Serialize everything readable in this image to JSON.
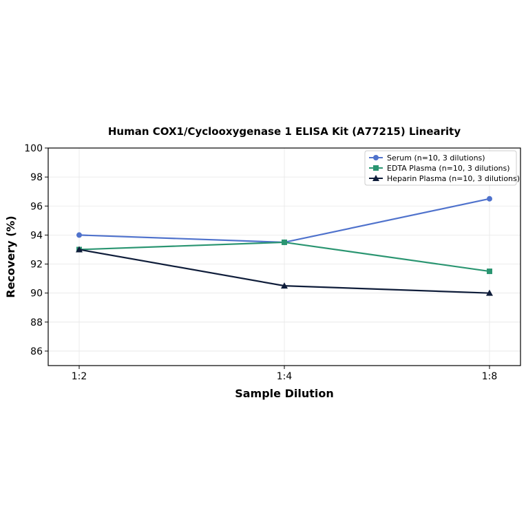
{
  "chart_data": {
    "type": "line",
    "title": "Human COX1/Cyclooxygenase 1 ELISA Kit (A77215) Linearity",
    "xlabel": "Sample Dilution",
    "ylabel": "Recovery (%)",
    "categories": [
      "1:2",
      "1:4",
      "1:8"
    ],
    "ylim": [
      85,
      100
    ],
    "yticks": [
      86,
      88,
      90,
      92,
      94,
      96,
      98,
      100
    ],
    "grid": true,
    "legend_position": "top-right",
    "series": [
      {
        "name": "Serum (n=10, 3 dilutions)",
        "color": "#4f72cc",
        "marker": "circle",
        "values": [
          94.0,
          93.5,
          96.5
        ]
      },
      {
        "name": "EDTA Plasma (n=10, 3 dilutions)",
        "color": "#2a9571",
        "marker": "square",
        "values": [
          93.0,
          93.5,
          91.5
        ]
      },
      {
        "name": "Heparin Plasma (n=10, 3 dilutions)",
        "color": "#0f1d3a",
        "marker": "triangle",
        "values": [
          93.0,
          90.5,
          90.0
        ]
      }
    ]
  }
}
